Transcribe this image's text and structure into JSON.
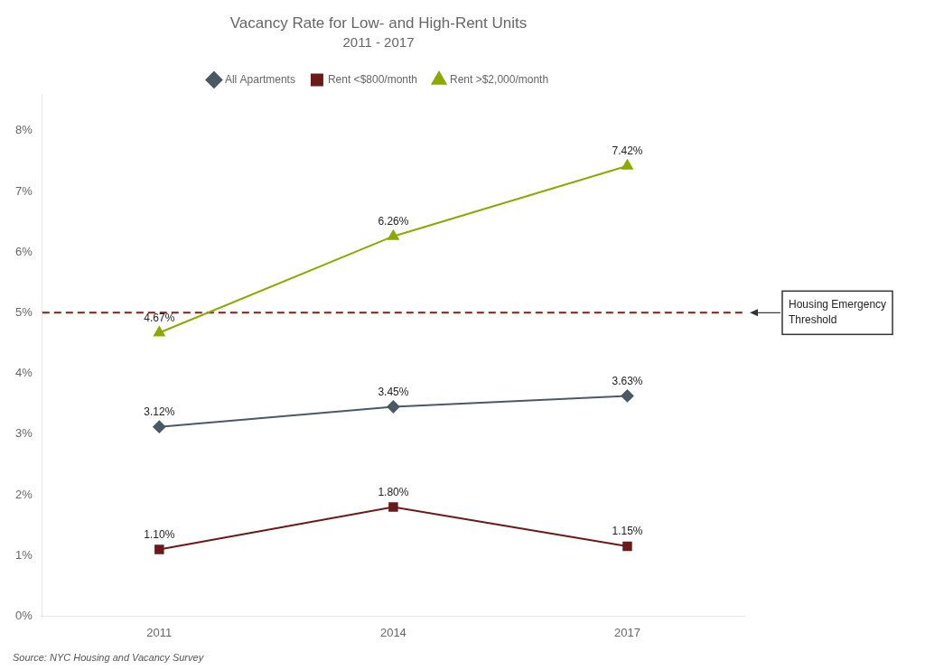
{
  "chart_data": {
    "type": "line",
    "title": "Vacancy Rate for Low- and High-Rent Units",
    "subtitle": "2011 - 2017",
    "x": [
      2011,
      2014,
      2017
    ],
    "xlim": [
      2009.5,
      2018.5
    ],
    "xticks": [
      2011,
      2014,
      2017
    ],
    "ylim": [
      0,
      8.6
    ],
    "yticks": [
      {
        "value": 0,
        "label": "0%"
      },
      {
        "value": 1,
        "label": "1%"
      },
      {
        "value": 2,
        "label": "2%"
      },
      {
        "value": 3,
        "label": "3%"
      },
      {
        "value": 4,
        "label": "4%"
      },
      {
        "value": 5,
        "label": "5%"
      },
      {
        "value": 6,
        "label": "6%"
      },
      {
        "value": 7,
        "label": "7%"
      },
      {
        "value": 8,
        "label": "8%"
      }
    ],
    "series": [
      {
        "name": "All Apartments",
        "color": "#4a5a65",
        "marker": "diamond",
        "values": [
          3.12,
          3.45,
          3.63
        ],
        "value_labels": [
          "3.12%",
          "3.45%",
          "3.63%"
        ]
      },
      {
        "name": "Rent <$800/month",
        "color": "#6b1a1a",
        "marker": "square",
        "values": [
          1.1,
          1.8,
          1.15
        ],
        "value_labels": [
          "1.10%",
          "1.80%",
          "1.15%"
        ]
      },
      {
        "name": "Rent >$2,000/month",
        "color": "#8aaa00",
        "marker": "triangle",
        "values": [
          4.67,
          6.26,
          7.42
        ],
        "value_labels": [
          "4.67%",
          "6.26%",
          "7.42%"
        ]
      }
    ],
    "data_labels": true,
    "grid": false,
    "legend": "top",
    "annotations": [
      {
        "type": "hline",
        "y": 5.0,
        "text": "Housing Emergency\nThreshold",
        "color": "#8b1a1a",
        "line_style": "dashed"
      }
    ],
    "source": "Source: NYC Housing and Vacancy Survey"
  }
}
